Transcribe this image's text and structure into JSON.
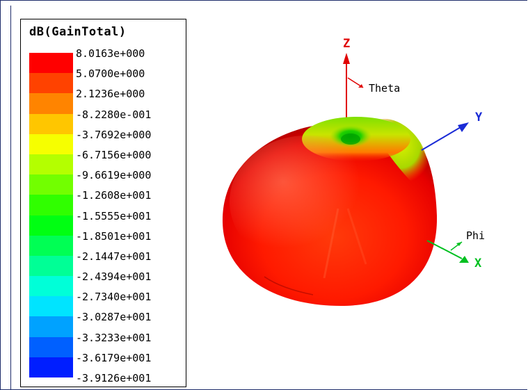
{
  "legend": {
    "title": "dB(GainTotal)",
    "entries": [
      {
        "value": "8.0163e+000",
        "color": "#ff0000"
      },
      {
        "value": "5.0700e+000",
        "color": "#ff4200"
      },
      {
        "value": "2.1236e+000",
        "color": "#ff8400"
      },
      {
        "value": "-8.2280e-001",
        "color": "#ffc600"
      },
      {
        "value": "-3.7692e+000",
        "color": "#f6ff00"
      },
      {
        "value": "-6.7156e+000",
        "color": "#b4ff00"
      },
      {
        "value": "-9.6619e+000",
        "color": "#72ff00"
      },
      {
        "value": "-1.2608e+001",
        "color": "#30ff00"
      },
      {
        "value": "-1.5555e+001",
        "color": "#00ff12"
      },
      {
        "value": "-1.8501e+001",
        "color": "#00ff54"
      },
      {
        "value": "-2.1447e+001",
        "color": "#00ff96"
      },
      {
        "value": "-2.4394e+001",
        "color": "#00ffd8"
      },
      {
        "value": "-2.7340e+001",
        "color": "#00e4ff"
      },
      {
        "value": "-3.0287e+001",
        "color": "#00a2ff"
      },
      {
        "value": "-3.3233e+001",
        "color": "#0060ff"
      },
      {
        "value": "-3.6179e+001",
        "color": "#001eff"
      },
      {
        "value": "-3.9126e+001",
        "color": "#0000ff"
      }
    ]
  },
  "axes": {
    "z_label": "Z",
    "y_label": "Y",
    "x_label": "X",
    "theta_label": "Theta",
    "phi_label": "Phi",
    "z_color": "#e00000",
    "y_color": "#1a2bd6",
    "x_color": "#00c020"
  }
}
